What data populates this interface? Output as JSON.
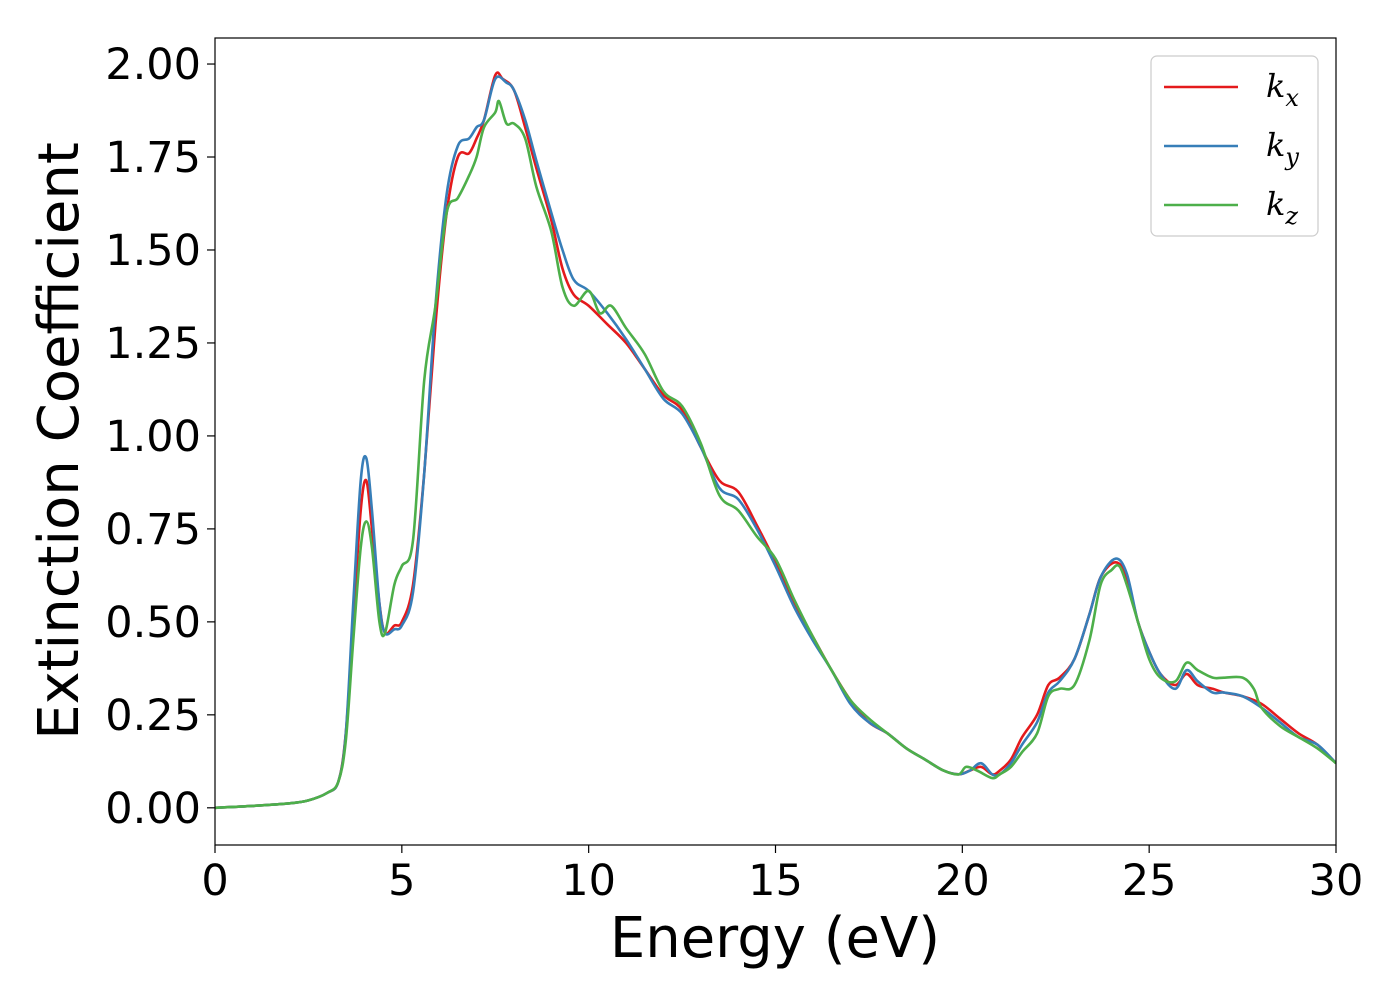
{
  "chart_data": {
    "type": "line",
    "xlabel": "Energy (eV)",
    "ylabel": "Extinction Coefficient",
    "xlim": [
      0,
      30
    ],
    "ylim": [
      -0.1,
      2.07
    ],
    "xticks": [
      0,
      5,
      10,
      15,
      20,
      25,
      30
    ],
    "xtick_labels": [
      "0",
      "5",
      "10",
      "15",
      "20",
      "25",
      "30"
    ],
    "yticks": [
      0,
      0.25,
      0.5,
      0.75,
      1.0,
      1.25,
      1.5,
      1.75,
      2.0
    ],
    "ytick_labels": [
      "0.00",
      "0.25",
      "0.50",
      "0.75",
      "1.00",
      "1.25",
      "1.50",
      "1.75",
      "2.00"
    ],
    "grid": false,
    "legend_position": "top-right",
    "series": [
      {
        "name": "k_x",
        "label_base": "k",
        "label_sub": "x",
        "color": "#e41a1c",
        "points": [
          [
            0,
            0
          ],
          [
            1,
            0.005
          ],
          [
            2,
            0.012
          ],
          [
            2.5,
            0.02
          ],
          [
            3,
            0.04
          ],
          [
            3.3,
            0.07
          ],
          [
            3.5,
            0.2
          ],
          [
            3.7,
            0.5
          ],
          [
            3.9,
            0.8
          ],
          [
            4.05,
            0.88
          ],
          [
            4.2,
            0.75
          ],
          [
            4.4,
            0.55
          ],
          [
            4.55,
            0.47
          ],
          [
            4.8,
            0.49
          ],
          [
            5,
            0.5
          ],
          [
            5.3,
            0.6
          ],
          [
            5.6,
            0.9
          ],
          [
            5.9,
            1.3
          ],
          [
            6.2,
            1.6
          ],
          [
            6.5,
            1.75
          ],
          [
            6.8,
            1.76
          ],
          [
            7.0,
            1.8
          ],
          [
            7.2,
            1.85
          ],
          [
            7.5,
            1.97
          ],
          [
            7.7,
            1.96
          ],
          [
            8.0,
            1.93
          ],
          [
            8.3,
            1.83
          ],
          [
            8.6,
            1.72
          ],
          [
            9.0,
            1.58
          ],
          [
            9.3,
            1.45
          ],
          [
            9.6,
            1.38
          ],
          [
            10.0,
            1.35
          ],
          [
            10.5,
            1.3
          ],
          [
            11.0,
            1.25
          ],
          [
            11.5,
            1.18
          ],
          [
            12.0,
            1.11
          ],
          [
            12.5,
            1.07
          ],
          [
            13.0,
            0.97
          ],
          [
            13.5,
            0.88
          ],
          [
            14.0,
            0.85
          ],
          [
            14.5,
            0.76
          ],
          [
            15.0,
            0.66
          ],
          [
            15.5,
            0.55
          ],
          [
            16.0,
            0.46
          ],
          [
            16.5,
            0.37
          ],
          [
            17.0,
            0.29
          ],
          [
            17.5,
            0.23
          ],
          [
            18.0,
            0.2
          ],
          [
            18.5,
            0.16
          ],
          [
            19.0,
            0.13
          ],
          [
            19.5,
            0.1
          ],
          [
            19.9,
            0.09
          ],
          [
            20.2,
            0.1
          ],
          [
            20.5,
            0.11
          ],
          [
            20.8,
            0.09
          ],
          [
            21.0,
            0.1
          ],
          [
            21.3,
            0.13
          ],
          [
            21.6,
            0.19
          ],
          [
            22.0,
            0.25
          ],
          [
            22.3,
            0.33
          ],
          [
            22.6,
            0.35
          ],
          [
            23.0,
            0.4
          ],
          [
            23.4,
            0.52
          ],
          [
            23.7,
            0.62
          ],
          [
            24.1,
            0.66
          ],
          [
            24.4,
            0.62
          ],
          [
            24.7,
            0.5
          ],
          [
            25.0,
            0.42
          ],
          [
            25.3,
            0.36
          ],
          [
            25.7,
            0.33
          ],
          [
            26.0,
            0.36
          ],
          [
            26.3,
            0.33
          ],
          [
            26.7,
            0.32
          ],
          [
            27.0,
            0.31
          ],
          [
            27.5,
            0.3
          ],
          [
            28.0,
            0.28
          ],
          [
            28.5,
            0.24
          ],
          [
            29.0,
            0.2
          ],
          [
            29.5,
            0.17
          ],
          [
            30.0,
            0.12
          ]
        ]
      },
      {
        "name": "k_y",
        "label_base": "k",
        "label_sub": "y",
        "color": "#377eb8",
        "points": [
          [
            0,
            0
          ],
          [
            1,
            0.005
          ],
          [
            2,
            0.012
          ],
          [
            2.5,
            0.02
          ],
          [
            3,
            0.04
          ],
          [
            3.3,
            0.07
          ],
          [
            3.5,
            0.2
          ],
          [
            3.7,
            0.55
          ],
          [
            3.9,
            0.88
          ],
          [
            4.05,
            0.94
          ],
          [
            4.2,
            0.8
          ],
          [
            4.4,
            0.55
          ],
          [
            4.55,
            0.47
          ],
          [
            4.8,
            0.48
          ],
          [
            5.0,
            0.49
          ],
          [
            5.3,
            0.58
          ],
          [
            5.6,
            0.9
          ],
          [
            5.9,
            1.35
          ],
          [
            6.2,
            1.65
          ],
          [
            6.5,
            1.78
          ],
          [
            6.8,
            1.8
          ],
          [
            7.0,
            1.83
          ],
          [
            7.2,
            1.85
          ],
          [
            7.5,
            1.96
          ],
          [
            7.8,
            1.95
          ],
          [
            8.0,
            1.93
          ],
          [
            8.3,
            1.85
          ],
          [
            8.6,
            1.74
          ],
          [
            9.0,
            1.6
          ],
          [
            9.3,
            1.5
          ],
          [
            9.6,
            1.42
          ],
          [
            10.0,
            1.39
          ],
          [
            10.5,
            1.33
          ],
          [
            11.0,
            1.26
          ],
          [
            11.5,
            1.18
          ],
          [
            12.0,
            1.1
          ],
          [
            12.5,
            1.06
          ],
          [
            13.0,
            0.97
          ],
          [
            13.5,
            0.86
          ],
          [
            14.0,
            0.83
          ],
          [
            14.5,
            0.75
          ],
          [
            15.0,
            0.65
          ],
          [
            15.5,
            0.54
          ],
          [
            16.0,
            0.45
          ],
          [
            16.5,
            0.37
          ],
          [
            17.0,
            0.28
          ],
          [
            17.5,
            0.23
          ],
          [
            18.0,
            0.2
          ],
          [
            18.5,
            0.16
          ],
          [
            19.0,
            0.13
          ],
          [
            19.5,
            0.1
          ],
          [
            19.9,
            0.09
          ],
          [
            20.2,
            0.1
          ],
          [
            20.5,
            0.12
          ],
          [
            20.8,
            0.09
          ],
          [
            21.0,
            0.09
          ],
          [
            21.3,
            0.12
          ],
          [
            21.6,
            0.17
          ],
          [
            22.0,
            0.23
          ],
          [
            22.3,
            0.31
          ],
          [
            22.6,
            0.34
          ],
          [
            23.0,
            0.4
          ],
          [
            23.4,
            0.52
          ],
          [
            23.7,
            0.62
          ],
          [
            24.1,
            0.67
          ],
          [
            24.4,
            0.63
          ],
          [
            24.7,
            0.5
          ],
          [
            25.0,
            0.42
          ],
          [
            25.3,
            0.36
          ],
          [
            25.7,
            0.32
          ],
          [
            26.0,
            0.37
          ],
          [
            26.3,
            0.34
          ],
          [
            26.7,
            0.31
          ],
          [
            27.0,
            0.31
          ],
          [
            27.5,
            0.3
          ],
          [
            28.0,
            0.27
          ],
          [
            28.5,
            0.23
          ],
          [
            29.0,
            0.19
          ],
          [
            29.5,
            0.17
          ],
          [
            30.0,
            0.12
          ]
        ]
      },
      {
        "name": "k_z",
        "label_base": "k",
        "label_sub": "z",
        "color": "#4daf4a",
        "points": [
          [
            0,
            0
          ],
          [
            1,
            0.005
          ],
          [
            2,
            0.012
          ],
          [
            2.5,
            0.02
          ],
          [
            3,
            0.04
          ],
          [
            3.3,
            0.07
          ],
          [
            3.5,
            0.18
          ],
          [
            3.7,
            0.45
          ],
          [
            3.9,
            0.7
          ],
          [
            4.05,
            0.77
          ],
          [
            4.2,
            0.7
          ],
          [
            4.4,
            0.5
          ],
          [
            4.55,
            0.47
          ],
          [
            4.8,
            0.6
          ],
          [
            5.0,
            0.65
          ],
          [
            5.3,
            0.72
          ],
          [
            5.6,
            1.15
          ],
          [
            5.9,
            1.35
          ],
          [
            6.2,
            1.6
          ],
          [
            6.5,
            1.64
          ],
          [
            6.8,
            1.7
          ],
          [
            7.0,
            1.75
          ],
          [
            7.2,
            1.83
          ],
          [
            7.5,
            1.87
          ],
          [
            7.6,
            1.9
          ],
          [
            7.8,
            1.84
          ],
          [
            8.0,
            1.84
          ],
          [
            8.3,
            1.8
          ],
          [
            8.6,
            1.67
          ],
          [
            9.0,
            1.55
          ],
          [
            9.3,
            1.4
          ],
          [
            9.6,
            1.35
          ],
          [
            10.0,
            1.39
          ],
          [
            10.3,
            1.33
          ],
          [
            10.6,
            1.35
          ],
          [
            11.0,
            1.29
          ],
          [
            11.5,
            1.22
          ],
          [
            12.0,
            1.12
          ],
          [
            12.5,
            1.08
          ],
          [
            13.0,
            0.98
          ],
          [
            13.5,
            0.84
          ],
          [
            14.0,
            0.8
          ],
          [
            14.5,
            0.73
          ],
          [
            15.0,
            0.67
          ],
          [
            15.5,
            0.56
          ],
          [
            16.0,
            0.46
          ],
          [
            16.5,
            0.37
          ],
          [
            17.0,
            0.29
          ],
          [
            17.5,
            0.24
          ],
          [
            18.0,
            0.2
          ],
          [
            18.5,
            0.16
          ],
          [
            19.0,
            0.13
          ],
          [
            19.5,
            0.1
          ],
          [
            19.9,
            0.09
          ],
          [
            20.1,
            0.11
          ],
          [
            20.4,
            0.1
          ],
          [
            20.8,
            0.08
          ],
          [
            21.0,
            0.09
          ],
          [
            21.3,
            0.11
          ],
          [
            21.6,
            0.15
          ],
          [
            22.0,
            0.2
          ],
          [
            22.3,
            0.3
          ],
          [
            22.6,
            0.32
          ],
          [
            23.0,
            0.33
          ],
          [
            23.4,
            0.45
          ],
          [
            23.7,
            0.6
          ],
          [
            24.0,
            0.64
          ],
          [
            24.2,
            0.65
          ],
          [
            24.4,
            0.6
          ],
          [
            24.7,
            0.5
          ],
          [
            25.0,
            0.4
          ],
          [
            25.3,
            0.35
          ],
          [
            25.7,
            0.34
          ],
          [
            26.0,
            0.39
          ],
          [
            26.3,
            0.37
          ],
          [
            26.7,
            0.35
          ],
          [
            27.0,
            0.35
          ],
          [
            27.5,
            0.35
          ],
          [
            27.8,
            0.32
          ],
          [
            28.0,
            0.27
          ],
          [
            28.5,
            0.22
          ],
          [
            29.0,
            0.19
          ],
          [
            29.5,
            0.16
          ],
          [
            30.0,
            0.12
          ]
        ]
      }
    ]
  }
}
